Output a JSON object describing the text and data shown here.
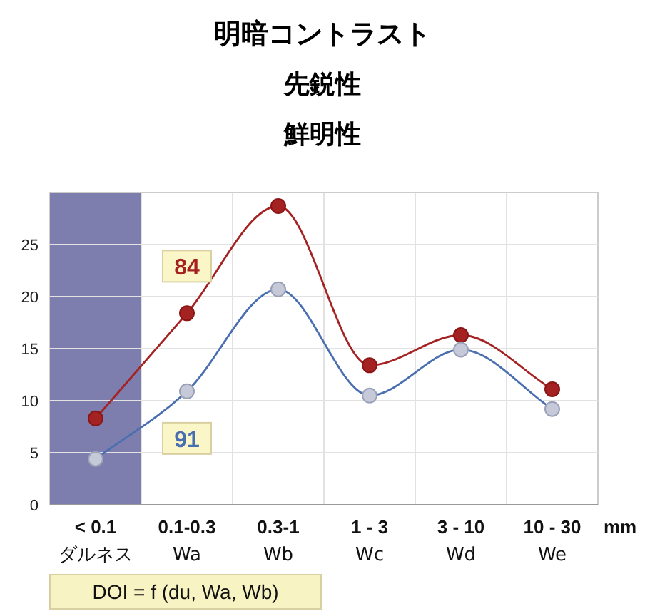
{
  "chart_data": {
    "type": "line",
    "title": "明暗コントラスト",
    "subtitle": "先鋭性鮮明性",
    "categories": [
      "< 0.1\nダルネス",
      "0.1-0.3\nWa",
      "0.3-1\nWb",
      "1 - 3\nWc",
      "3 - 10\nWd",
      "10 - 30\nWe"
    ],
    "xlabel": "mm",
    "series": [
      {
        "name": "84",
        "color": "#a52222",
        "values": [
          8.3,
          18.4,
          28.7,
          13.4,
          16.3,
          11.1
        ]
      },
      {
        "name": "91",
        "color": "#4a6fb0",
        "values": [
          4.4,
          10.9,
          20.7,
          10.5,
          14.9,
          9.2
        ]
      }
    ],
    "ylim": [
      0,
      30
    ],
    "yticks": [
      0,
      5,
      10,
      15,
      20,
      25
    ],
    "bands": [
      {
        "axis": "x",
        "from": "< 0.1\nダルネス",
        "to": "< 0.1\nダルネス",
        "color": "#7d7dae"
      }
    ],
    "annotations": [
      "DOI = f (du, Wa, Wb)"
    ],
    "grid": true,
    "marker": "circle"
  }
}
